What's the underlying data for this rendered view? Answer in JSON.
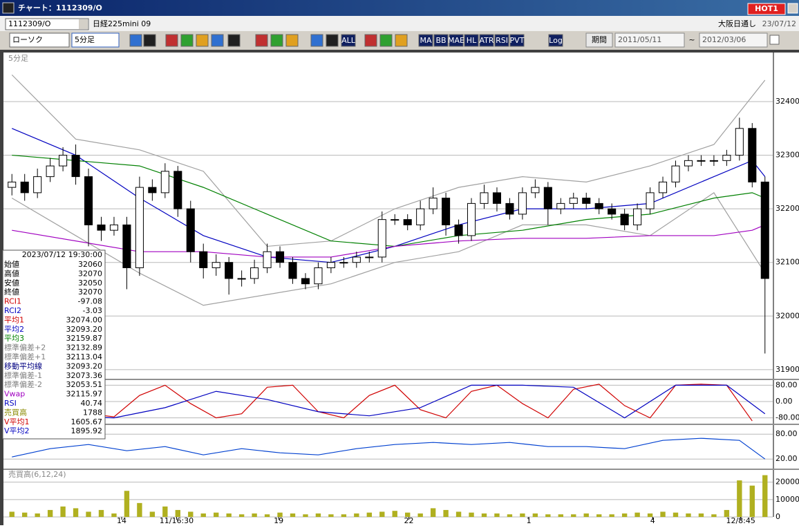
{
  "window": {
    "title": "チャート：1112309/O",
    "hot_button": "HOT1"
  },
  "symbol_bar": {
    "code": "1112309/O",
    "name": "日経225mini 09",
    "market": "大阪日通し",
    "date": "23/07/12"
  },
  "toolbar": {
    "chart_type": "ローソク",
    "interval": "5分足",
    "icons": [
      "ALL",
      "MA",
      "BB",
      "MAE",
      "HL",
      "ATR",
      "RSI",
      "PVT",
      "Log"
    ],
    "period_label": "期間",
    "from": "2011/05/11",
    "separator": "~",
    "to": "2012/03/06"
  },
  "info_panel": {
    "datetime": "2023/07/12 19:30:00",
    "rows": [
      {
        "label": "始値",
        "value": "32060",
        "color": "#000000"
      },
      {
        "label": "高値",
        "value": "32070",
        "color": "#000000"
      },
      {
        "label": "安値",
        "value": "32050",
        "color": "#000000"
      },
      {
        "label": "終値",
        "value": "32070",
        "color": "#000000"
      },
      {
        "label": "RCI1",
        "value": "-97.08",
        "color": "#d00000"
      },
      {
        "label": "RCI2",
        "value": "-3.03",
        "color": "#0000c0"
      },
      {
        "label": "平均1",
        "value": "32074.00",
        "color": "#d00000"
      },
      {
        "label": "平均2",
        "value": "32093.20",
        "color": "#0000c0"
      },
      {
        "label": "平均3",
        "value": "32159.87",
        "color": "#008000"
      },
      {
        "label": "標準偏差+2",
        "value": "32132.89",
        "color": "#808080"
      },
      {
        "label": "標準偏差+1",
        "value": "32113.04",
        "color": "#808080"
      },
      {
        "label": "移動平均線",
        "value": "32093.20",
        "color": "#000080"
      },
      {
        "label": "標準偏差-1",
        "value": "32073.36",
        "color": "#808080"
      },
      {
        "label": "標準偏差-2",
        "value": "32053.51",
        "color": "#808080"
      },
      {
        "label": "Vwap",
        "value": "32115.97",
        "color": "#a000c0"
      },
      {
        "label": "RSI",
        "value": "40.74",
        "color": "#0000c0"
      },
      {
        "label": "売買高",
        "value": "1788",
        "color": "#8a8a00"
      },
      {
        "label": "V平均1",
        "value": "1605.67",
        "color": "#d00000"
      },
      {
        "label": "V平均2",
        "value": "1895.92",
        "color": "#0000c0"
      }
    ]
  },
  "chart_data": [
    {
      "type": "candlestick",
      "title": "5分足",
      "open": [
        32240,
        32250,
        32230,
        32260,
        32280,
        32300,
        32260,
        32170,
        32160,
        32170,
        32090,
        32240,
        32230,
        32270,
        32200,
        32120,
        32090,
        32100,
        32070,
        32070,
        32090,
        32120,
        32100,
        32070,
        32060,
        32090,
        32100,
        32100,
        32110,
        32110,
        32180,
        32180,
        32170,
        32200,
        32220,
        32170,
        32150,
        32210,
        32230,
        32210,
        32190,
        32230,
        32240,
        32200,
        32210,
        32220,
        32210,
        32200,
        32190,
        32170,
        32200,
        32230,
        32250,
        32280,
        32290,
        32290,
        32290,
        32300,
        32350,
        32250
      ],
      "high": [
        32265,
        32265,
        32275,
        32295,
        32315,
        32320,
        32275,
        32185,
        32185,
        32185,
        32260,
        32255,
        32285,
        32280,
        32215,
        32135,
        32115,
        32110,
        32085,
        32105,
        32135,
        32130,
        32110,
        32080,
        32100,
        32110,
        32110,
        32120,
        32120,
        32195,
        32190,
        32190,
        32215,
        32240,
        32230,
        32180,
        32220,
        32245,
        32240,
        32220,
        32240,
        32255,
        32250,
        32220,
        32230,
        32230,
        32220,
        32210,
        32200,
        32210,
        32240,
        32260,
        32290,
        32300,
        32300,
        32300,
        32310,
        32370,
        32360,
        32260
      ],
      "low": [
        32225,
        32215,
        32220,
        32250,
        32270,
        32245,
        32130,
        32140,
        32150,
        32050,
        32075,
        32215,
        32220,
        32185,
        32100,
        32070,
        32075,
        32040,
        32055,
        32060,
        32080,
        32090,
        32060,
        32050,
        32050,
        32080,
        32090,
        32090,
        32100,
        32100,
        32170,
        32160,
        32160,
        32190,
        32150,
        32135,
        32140,
        32200,
        32195,
        32180,
        32180,
        32220,
        32170,
        32190,
        32200,
        32200,
        32190,
        32180,
        32160,
        32160,
        32190,
        32220,
        32240,
        32270,
        32280,
        32280,
        32280,
        32290,
        32240,
        31930
      ],
      "close": [
        32250,
        32230,
        32260,
        32280,
        32300,
        32260,
        32170,
        32160,
        32170,
        32090,
        32240,
        32230,
        32270,
        32200,
        32120,
        32090,
        32100,
        32070,
        32070,
        32090,
        32120,
        32100,
        32070,
        32060,
        32090,
        32100,
        32100,
        32110,
        32110,
        32180,
        32180,
        32170,
        32200,
        32220,
        32170,
        32150,
        32210,
        32230,
        32210,
        32190,
        32230,
        32240,
        32200,
        32210,
        32220,
        32210,
        32200,
        32190,
        32170,
        32200,
        32230,
        32250,
        32280,
        32290,
        32290,
        32290,
        32300,
        32350,
        32250,
        32070
      ],
      "series": [
        {
          "color": "#a0a0a0",
          "x": [
            0,
            5,
            10,
            15,
            20,
            25,
            30,
            35,
            40,
            45,
            50,
            55,
            59
          ],
          "values": [
            32450,
            32330,
            32310,
            32270,
            32130,
            32140,
            32200,
            32240,
            32260,
            32250,
            32280,
            32320,
            32440
          ]
        },
        {
          "color": "#a0a0a0",
          "x": [
            0,
            5,
            10,
            15,
            20,
            25,
            30,
            35,
            40,
            45,
            50,
            55,
            59
          ],
          "values": [
            32220,
            32150,
            32080,
            32020,
            32040,
            32060,
            32100,
            32120,
            32170,
            32170,
            32150,
            32230,
            32080
          ]
        },
        {
          "color": "#0000c0",
          "x": [
            0,
            5,
            10,
            15,
            20,
            25,
            30,
            35,
            40,
            45,
            50,
            55,
            58,
            59
          ],
          "values": [
            32350,
            32300,
            32220,
            32150,
            32110,
            32100,
            32130,
            32170,
            32200,
            32200,
            32210,
            32260,
            32290,
            32260
          ]
        },
        {
          "color": "#008000",
          "x": [
            0,
            10,
            15,
            20,
            25,
            30,
            35,
            40,
            45,
            50,
            55,
            58,
            59
          ],
          "values": [
            32300,
            32280,
            32240,
            32190,
            32140,
            32130,
            32150,
            32160,
            32180,
            32190,
            32220,
            32230,
            32220
          ]
        },
        {
          "color": "#a000c0",
          "x": [
            0,
            10,
            15,
            20,
            25,
            30,
            35,
            40,
            45,
            50,
            55,
            58,
            59
          ],
          "values": [
            32160,
            32120,
            32120,
            32110,
            32110,
            32130,
            32140,
            32145,
            32145,
            32150,
            32150,
            32160,
            32170
          ]
        }
      ],
      "ylim": [
        31883,
        32489
      ],
      "yticks": [
        31900,
        32000,
        32100,
        32200,
        32300,
        32400
      ],
      "grid": true
    },
    {
      "type": "line",
      "series": [
        {
          "color": "#d00000",
          "x": [
            0,
            2,
            4,
            6,
            8,
            10,
            12,
            14,
            16,
            18,
            20,
            22,
            24,
            26,
            28,
            30,
            32,
            34,
            36,
            38,
            40,
            42,
            44,
            46,
            48,
            50,
            52,
            54,
            56,
            58
          ],
          "values": [
            40,
            75,
            20,
            -60,
            -75,
            30,
            80,
            -10,
            -80,
            -60,
            70,
            80,
            -50,
            -80,
            30,
            80,
            -40,
            -80,
            50,
            80,
            -10,
            -80,
            60,
            85,
            -20,
            -80,
            80,
            85,
            80,
            -95
          ]
        },
        {
          "color": "#0000c0",
          "x": [
            0,
            4,
            8,
            12,
            16,
            20,
            24,
            28,
            32,
            36,
            40,
            44,
            48,
            52,
            56,
            59
          ],
          "values": [
            -60,
            -70,
            -80,
            -30,
            50,
            10,
            -50,
            -70,
            -30,
            80,
            80,
            70,
            -80,
            80,
            80,
            -60
          ]
        }
      ],
      "ylim": [
        -105,
        105
      ],
      "yticks": [
        {
          "value": 80,
          "label": "80.00"
        },
        {
          "value": 0,
          "label": "0.00"
        },
        {
          "value": -80,
          "label": "-80.00"
        }
      ],
      "grid": true
    },
    {
      "type": "line",
      "series": [
        {
          "color": "#0040d0",
          "x": [
            0,
            3,
            6,
            9,
            12,
            15,
            18,
            21,
            24,
            27,
            30,
            33,
            36,
            39,
            42,
            45,
            48,
            51,
            54,
            57,
            59
          ],
          "values": [
            25,
            45,
            55,
            40,
            50,
            30,
            45,
            35,
            30,
            45,
            55,
            60,
            55,
            60,
            50,
            50,
            45,
            65,
            70,
            65,
            20
          ]
        }
      ],
      "ylim": [
        -3,
        102
      ],
      "yticks": [
        {
          "value": 80,
          "label": "80.00"
        },
        {
          "value": 20,
          "label": "20.00"
        }
      ],
      "grid": true
    },
    {
      "type": "bar",
      "title": "売買高(6,12,24)",
      "color": "#b0b020",
      "values": [
        3000,
        2500,
        2000,
        4000,
        6000,
        5000,
        3000,
        4000,
        2000,
        15000,
        8000,
        3000,
        6000,
        4000,
        3000,
        2000,
        2500,
        2000,
        1500,
        2000,
        1500,
        2500,
        2000,
        1500,
        2000,
        1500,
        1500,
        2000,
        2500,
        3000,
        3500,
        2500,
        2000,
        5000,
        4000,
        3000,
        2500,
        2000,
        2000,
        1500,
        2000,
        2000,
        1500,
        1500,
        1500,
        2000,
        1500,
        1500,
        2000,
        2500,
        2000,
        3000,
        2500,
        2000,
        2000,
        1500,
        4000,
        21000,
        18000,
        24000
      ],
      "ylim": [
        0,
        27000
      ],
      "yticks": [
        20000,
        10000,
        0
      ],
      "grid": true,
      "xticks": [
        {
          "value": 8.6,
          "label": "14"
        },
        {
          "value": 12.9,
          "label": "11/16:30"
        },
        {
          "value": 20.9,
          "label": "19"
        },
        {
          "value": 31.1,
          "label": "22"
        },
        {
          "value": 40.5,
          "label": "1"
        },
        {
          "value": 50.2,
          "label": "4"
        },
        {
          "value": 57.1,
          "label": "12/8:45"
        }
      ]
    }
  ]
}
